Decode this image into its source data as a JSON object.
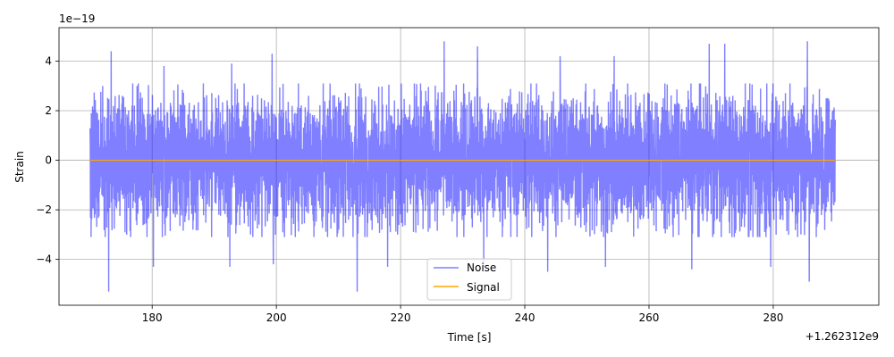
{
  "chart_data": {
    "type": "line",
    "title": "",
    "xlabel": "Time [s]",
    "ylabel": "Strain",
    "x_offset_label": "+1.262312e9",
    "y_scale_label": "1e−19",
    "xlim": [
      165,
      297
    ],
    "ylim": [
      -5.85,
      5.35
    ],
    "x_ticks": [
      180,
      200,
      220,
      240,
      260,
      280
    ],
    "x_tick_labels": [
      "180",
      "200",
      "220",
      "240",
      "260",
      "280"
    ],
    "y_ticks": [
      -4,
      -2,
      0,
      2,
      4
    ],
    "y_tick_labels": [
      "−4",
      "−2",
      "0",
      "2",
      "4"
    ],
    "grid": true,
    "legend": {
      "placement": "lower-center",
      "entries": [
        "Noise",
        "Signal"
      ]
    },
    "series": [
      {
        "name": "Noise",
        "color": "#0000ff",
        "alpha": 0.5,
        "x_range": [
          170,
          290
        ],
        "typical_amplitude": 2.1,
        "peaks": [
          {
            "x": 173.4,
            "y": 4.4
          },
          {
            "x": 181.9,
            "y": 3.8
          },
          {
            "x": 192.8,
            "y": 3.9
          },
          {
            "x": 199.3,
            "y": 4.3
          },
          {
            "x": 213.0,
            "y": 3.7
          },
          {
            "x": 227.0,
            "y": 4.8
          },
          {
            "x": 232.4,
            "y": 4.6
          },
          {
            "x": 245.7,
            "y": 4.2
          },
          {
            "x": 254.4,
            "y": 4.2
          },
          {
            "x": 269.7,
            "y": 4.7
          },
          {
            "x": 272.2,
            "y": 4.7
          },
          {
            "x": 285.5,
            "y": 4.8
          }
        ],
        "troughs": [
          {
            "x": 173.0,
            "y": -5.3
          },
          {
            "x": 180.2,
            "y": -4.3
          },
          {
            "x": 192.5,
            "y": -4.3
          },
          {
            "x": 199.5,
            "y": -4.2
          },
          {
            "x": 213.0,
            "y": -5.3
          },
          {
            "x": 217.9,
            "y": -4.3
          },
          {
            "x": 233.4,
            "y": -4.3
          },
          {
            "x": 243.7,
            "y": -4.5
          },
          {
            "x": 253.0,
            "y": -4.3
          },
          {
            "x": 266.9,
            "y": -4.4
          },
          {
            "x": 279.6,
            "y": -4.3
          },
          {
            "x": 285.8,
            "y": -4.9
          }
        ]
      },
      {
        "name": "Signal",
        "color": "#ffa500",
        "x_range": [
          170,
          290
        ],
        "values_constant": 0
      }
    ]
  }
}
